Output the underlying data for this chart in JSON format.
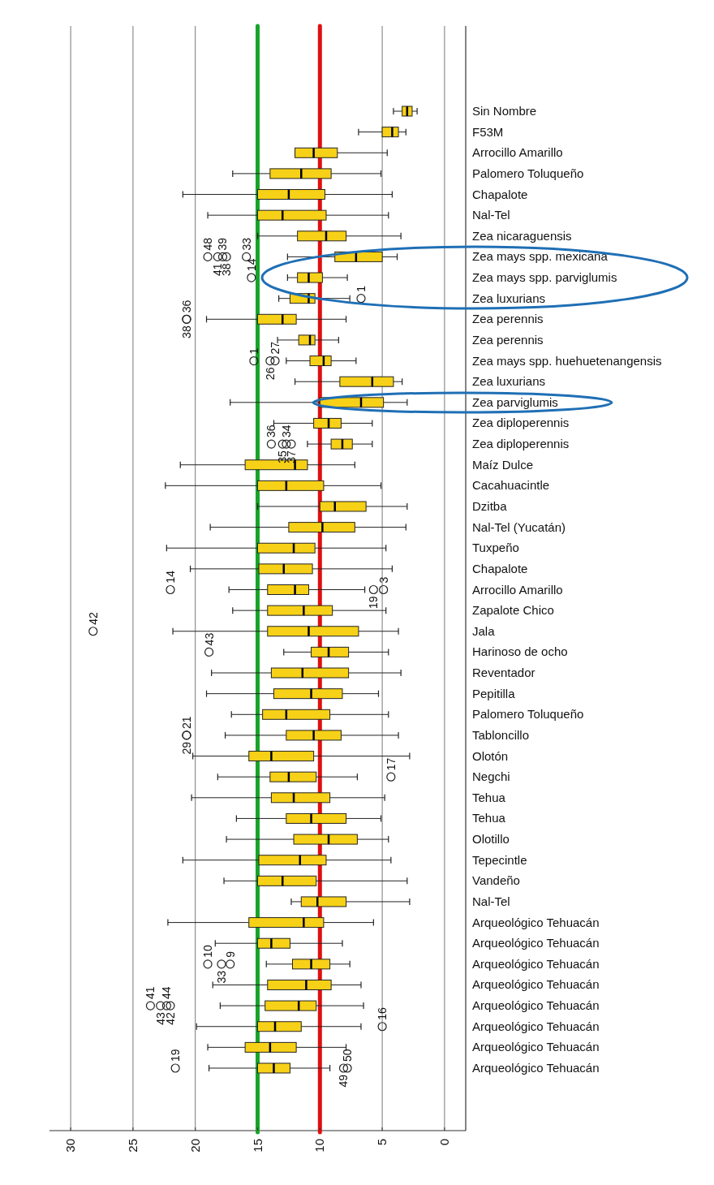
{
  "chart_data": {
    "type": "box",
    "orientation": "horizontal",
    "grid": "x",
    "xlim": [
      31.7,
      -1.7
    ],
    "xticks": [
      30,
      25,
      20,
      15,
      10,
      5,
      0
    ],
    "categories": [
      "Sin Nombre",
      "F53M",
      "Arrocillo Amarillo",
      "Palomero Toluqueño",
      "Chapalote",
      "Nal-Tel",
      "Zea nicaraguensis",
      "Zea mays spp. mexicana",
      "Zea mays spp. parviglumis",
      "Zea luxurians",
      "Zea perennis",
      "Zea perennis",
      "Zea mays spp. huehuetenangensis",
      "Zea luxurians",
      "Zea parviglumis",
      "Zea diploperennis",
      "Zea diploperennis",
      "Maíz Dulce",
      "Cacahuacintle",
      "Dzitba",
      "Nal-Tel (Yucatán)",
      "Tuxpeño",
      "Chapalote",
      "Arrocillo Amarillo",
      "Zapalote Chico",
      "Jala",
      "Harinoso de ocho",
      "Reventador",
      "Pepitilla",
      "Palomero Toluqueño",
      "Tabloncillo",
      "Olotón",
      "Negchi",
      "Tehua",
      "Tehua",
      "Olotillo",
      "Tepecintle",
      "Vandeño",
      "Nal-Tel",
      "Arqueológico Tehuacán",
      "Arqueológico Tehuacán",
      "Arqueológico Tehuacán",
      "Arqueológico Tehuacán",
      "Arqueológico Tehuacán",
      "Arqueológico Tehuacán",
      "Arqueológico Tehuacán",
      "Arqueológico Tehuacán"
    ],
    "series": [
      {
        "color": "#f7d117",
        "boxes": [
          {
            "low": 2.2,
            "q1": 2.6,
            "median": 3.0,
            "q3": 3.4,
            "high": 4.1
          },
          {
            "low": 3.1,
            "q1": 3.7,
            "median": 4.2,
            "q3": 5.0,
            "high": 6.9
          },
          {
            "low": 4.6,
            "q1": 8.6,
            "median": 10.5,
            "q3": 12.0,
            "high": 12.0
          },
          {
            "low": 5.1,
            "q1": 9.1,
            "median": 11.5,
            "q3": 14.0,
            "high": 17.0
          },
          {
            "low": 4.2,
            "q1": 9.6,
            "median": 12.5,
            "q3": 15.0,
            "high": 21.0
          },
          {
            "low": 4.5,
            "q1": 9.5,
            "median": 13.0,
            "q3": 15.0,
            "high": 19.0
          },
          {
            "low": 3.5,
            "q1": 7.9,
            "median": 9.5,
            "q3": 11.8,
            "high": 15.0
          },
          {
            "low": 3.8,
            "q1": 5.0,
            "median": 7.1,
            "q3": 8.8,
            "high": 12.6,
            "outliers": [
              19.0,
              18.2,
              17.8,
              17.5,
              15.9
            ]
          },
          {
            "low": 7.8,
            "q1": 9.8,
            "median": 10.9,
            "q3": 11.8,
            "high": 12.6,
            "outliers": [
              15.5
            ]
          },
          {
            "low": 7.6,
            "q1": 10.4,
            "median": 10.9,
            "q3": 12.4,
            "high": 13.3,
            "outliers": [
              6.7
            ]
          },
          {
            "low": 7.9,
            "q1": 11.9,
            "median": 13.0,
            "q3": 15.0,
            "high": 19.1,
            "outliers": [
              20.7,
              20.7
            ]
          },
          {
            "low": 8.5,
            "q1": 10.4,
            "median": 10.8,
            "q3": 11.7,
            "high": 13.4
          },
          {
            "low": 7.1,
            "q1": 9.1,
            "median": 9.7,
            "q3": 10.8,
            "high": 12.7,
            "outliers": [
              15.3,
              14.0,
              13.6
            ]
          },
          {
            "low": 3.4,
            "q1": 4.1,
            "median": 5.8,
            "q3": 8.4,
            "high": 12.0
          },
          {
            "low": 3.0,
            "q1": 4.9,
            "median": 6.7,
            "q3": 10.0,
            "high": 17.2
          },
          {
            "low": 5.8,
            "q1": 8.3,
            "median": 9.3,
            "q3": 10.5,
            "high": 13.7
          },
          {
            "low": 5.8,
            "q1": 7.4,
            "median": 8.2,
            "q3": 9.1,
            "high": 11.0,
            "outliers": [
              13.9,
              13.0,
              12.7,
              12.3
            ]
          },
          {
            "low": 7.2,
            "q1": 11.0,
            "median": 12.0,
            "q3": 16.0,
            "high": 21.2
          },
          {
            "low": 5.1,
            "q1": 9.7,
            "median": 12.7,
            "q3": 15.0,
            "high": 22.4
          },
          {
            "low": 3.0,
            "q1": 6.3,
            "median": 8.8,
            "q3": 10.0,
            "high": 15.0
          },
          {
            "low": 3.1,
            "q1": 7.2,
            "median": 9.8,
            "q3": 12.5,
            "high": 18.8
          },
          {
            "low": 4.7,
            "q1": 10.4,
            "median": 12.1,
            "q3": 15.0,
            "high": 22.3
          },
          {
            "low": 4.2,
            "q1": 10.6,
            "median": 12.9,
            "q3": 14.9,
            "high": 20.4
          },
          {
            "low": 6.4,
            "q1": 10.9,
            "median": 12.0,
            "q3": 14.2,
            "high": 17.3,
            "outliers": [
              22.0,
              5.7,
              4.9
            ]
          },
          {
            "low": 4.7,
            "q1": 9.0,
            "median": 11.3,
            "q3": 14.2,
            "high": 17.0
          },
          {
            "low": 3.7,
            "q1": 6.9,
            "median": 10.9,
            "q3": 14.2,
            "high": 21.8,
            "outliers": [
              28.2
            ]
          },
          {
            "low": 4.5,
            "q1": 7.7,
            "median": 9.3,
            "q3": 10.7,
            "high": 12.9,
            "outliers": [
              18.9
            ]
          },
          {
            "low": 3.5,
            "q1": 7.7,
            "median": 11.4,
            "q3": 13.9,
            "high": 18.7
          },
          {
            "low": 5.3,
            "q1": 8.2,
            "median": 10.7,
            "q3": 13.7,
            "high": 19.1
          },
          {
            "low": 4.5,
            "q1": 9.2,
            "median": 12.7,
            "q3": 14.6,
            "high": 17.1
          },
          {
            "low": 3.7,
            "q1": 8.3,
            "median": 10.5,
            "q3": 12.7,
            "high": 17.6,
            "outliers": [
              20.7,
              20.7
            ]
          },
          {
            "low": 2.8,
            "q1": 10.5,
            "median": 13.9,
            "q3": 15.7,
            "high": 20.2
          },
          {
            "low": 7.0,
            "q1": 10.3,
            "median": 12.5,
            "q3": 14.0,
            "high": 18.2,
            "outliers": [
              4.3
            ]
          },
          {
            "low": 4.8,
            "q1": 9.2,
            "median": 12.1,
            "q3": 13.9,
            "high": 20.3
          },
          {
            "low": 5.1,
            "q1": 7.9,
            "median": 10.7,
            "q3": 12.7,
            "high": 16.7
          },
          {
            "low": 4.5,
            "q1": 7.0,
            "median": 9.3,
            "q3": 12.1,
            "high": 17.5
          },
          {
            "low": 4.3,
            "q1": 9.5,
            "median": 11.6,
            "q3": 14.9,
            "high": 21.0
          },
          {
            "low": 3.0,
            "q1": 10.3,
            "median": 13.0,
            "q3": 15.0,
            "high": 17.7
          },
          {
            "low": 2.8,
            "q1": 7.9,
            "median": 10.2,
            "q3": 11.5,
            "high": 12.3
          },
          {
            "low": 5.7,
            "q1": 9.7,
            "median": 11.3,
            "q3": 15.7,
            "high": 22.2
          },
          {
            "low": 8.2,
            "q1": 12.4,
            "median": 13.9,
            "q3": 15.0,
            "high": 18.4
          },
          {
            "low": 7.6,
            "q1": 9.2,
            "median": 10.7,
            "q3": 12.2,
            "high": 14.3,
            "outliers": [
              19.0,
              17.9,
              17.2
            ]
          },
          {
            "low": 6.7,
            "q1": 9.1,
            "median": 11.1,
            "q3": 14.2,
            "high": 18.6
          },
          {
            "low": 6.5,
            "q1": 10.3,
            "median": 11.7,
            "q3": 14.4,
            "high": 18.0,
            "outliers": [
              23.6,
              22.8,
              22.3,
              22.0
            ]
          },
          {
            "low": 6.7,
            "q1": 11.5,
            "median": 13.6,
            "q3": 15.0,
            "high": 19.9,
            "outliers": [
              5.0
            ]
          },
          {
            "low": 7.9,
            "q1": 11.9,
            "median": 14.0,
            "q3": 16.0,
            "high": 19.0
          },
          {
            "low": 9.2,
            "q1": 12.4,
            "median": 13.7,
            "q3": 15.0,
            "high": 18.9,
            "outliers": [
              21.6,
              8.1,
              7.8
            ]
          }
        ]
      }
    ],
    "ref_lines": [
      {
        "axis": "x",
        "value": 15,
        "color": "#1aa32a"
      },
      {
        "axis": "x",
        "value": 10,
        "color": "#e01010"
      }
    ],
    "annotations": [
      "48",
      "41",
      "39",
      "38",
      "33",
      "14",
      "1",
      "36",
      "38",
      "1",
      "26",
      "27",
      "36",
      "35",
      "34",
      "37",
      "14",
      "19",
      "3",
      "42",
      "43",
      "21",
      "29",
      "17",
      "10",
      "33",
      "9",
      "41",
      "43",
      "44",
      "42",
      "16",
      "19",
      "49",
      "50"
    ]
  }
}
